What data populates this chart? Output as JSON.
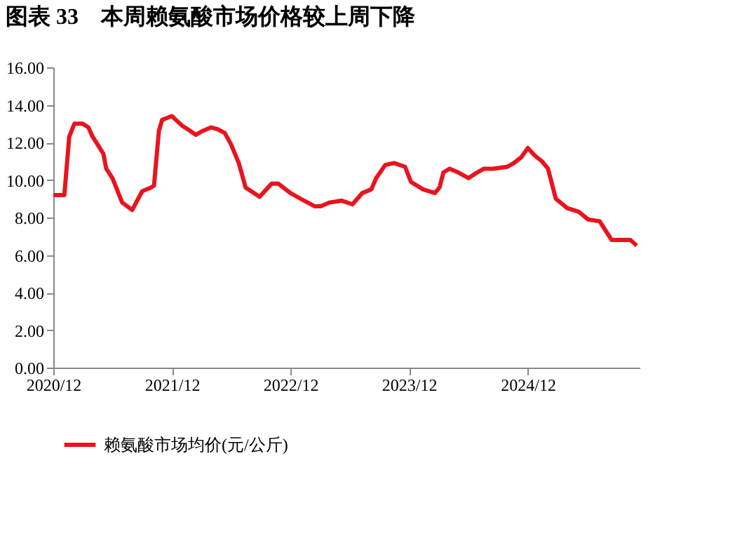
{
  "chart_data": {
    "type": "line",
    "title": "图表 33　本周赖氨酸市场价格较上周下降",
    "x": [
      "2020-12-01",
      "2021-01-04",
      "2021-01-19",
      "2021-02-04",
      "2021-03-01",
      "2021-03-19",
      "2021-04-01",
      "2021-04-16",
      "2021-05-04",
      "2021-05-13",
      "2021-06-01",
      "2021-07-01",
      "2021-08-01",
      "2021-08-13",
      "2021-09-01",
      "2021-09-28",
      "2021-10-07",
      "2021-10-22",
      "2021-11-01",
      "2021-12-01",
      "2022-01-01",
      "2022-01-19",
      "2022-02-13",
      "2022-03-04",
      "2022-04-01",
      "2022-04-22",
      "2022-05-13",
      "2022-06-01",
      "2022-06-25",
      "2022-07-16",
      "2022-08-28",
      "2022-10-04",
      "2022-10-25",
      "2022-12-01",
      "2023-01-01",
      "2023-02-13",
      "2023-03-04",
      "2023-04-01",
      "2023-05-07",
      "2023-06-10",
      "2023-07-10",
      "2023-08-07",
      "2023-08-22",
      "2023-09-19",
      "2023-10-16",
      "2023-11-19",
      "2023-12-07",
      "2024-01-13",
      "2024-02-19",
      "2024-03-04",
      "2024-03-16",
      "2024-04-04",
      "2024-05-01",
      "2024-06-01",
      "2024-06-28",
      "2024-07-19",
      "2024-08-16",
      "2024-09-28",
      "2024-10-19",
      "2024-11-10",
      "2024-12-01",
      "2024-12-22",
      "2025-01-13",
      "2025-02-01",
      "2025-02-25",
      "2025-04-01",
      "2025-05-07",
      "2025-06-04",
      "2025-07-10",
      "2025-08-16",
      "2025-10-13",
      "2025-11-01"
    ],
    "series": [
      {
        "name": "赖氨酸市场均价(元/公斤)",
        "color": "#e8141f",
        "values": [
          9.2,
          9.2,
          12.3,
          13.0,
          13.0,
          12.8,
          12.3,
          11.9,
          11.4,
          10.6,
          10.1,
          8.8,
          8.4,
          8.8,
          9.4,
          9.6,
          9.7,
          12.6,
          13.2,
          13.4,
          12.9,
          12.7,
          12.4,
          12.6,
          12.8,
          12.7,
          12.5,
          11.9,
          10.9,
          9.6,
          9.1,
          9.8,
          9.8,
          9.3,
          9.0,
          8.6,
          8.6,
          8.8,
          8.9,
          8.7,
          9.3,
          9.5,
          10.1,
          10.8,
          10.9,
          10.7,
          9.9,
          9.5,
          9.3,
          9.6,
          10.4,
          10.6,
          10.4,
          10.1,
          10.4,
          10.6,
          10.6,
          10.7,
          10.9,
          11.2,
          11.7,
          11.3,
          11.0,
          10.6,
          9.0,
          8.5,
          8.3,
          7.9,
          7.8,
          6.8,
          6.8,
          6.5
        ]
      }
    ],
    "xlim": [
      "2020-12-01",
      "2025-11-10"
    ],
    "xticks": [
      {
        "value": "2020-12",
        "label": "2020/12"
      },
      {
        "value": "2021-12",
        "label": "2021/12"
      },
      {
        "value": "2022-12",
        "label": "2022/12"
      },
      {
        "value": "2023-12",
        "label": "2023/12"
      },
      {
        "value": "2024-12",
        "label": "2024/12"
      }
    ],
    "ylim": [
      0,
      16
    ],
    "yticks": [
      {
        "value": 0,
        "label": "0.00"
      },
      {
        "value": 2,
        "label": "2.00"
      },
      {
        "value": 4,
        "label": "4.00"
      },
      {
        "value": 6,
        "label": "6.00"
      },
      {
        "value": 8,
        "label": "8.00"
      },
      {
        "value": 10,
        "label": "10.00"
      },
      {
        "value": 12,
        "label": "12.00"
      },
      {
        "value": 14,
        "label": "14.00"
      },
      {
        "value": 16,
        "label": "16.00"
      }
    ],
    "legend": "bottom",
    "grid": false,
    "marker": "none",
    "line_style": "solid"
  }
}
